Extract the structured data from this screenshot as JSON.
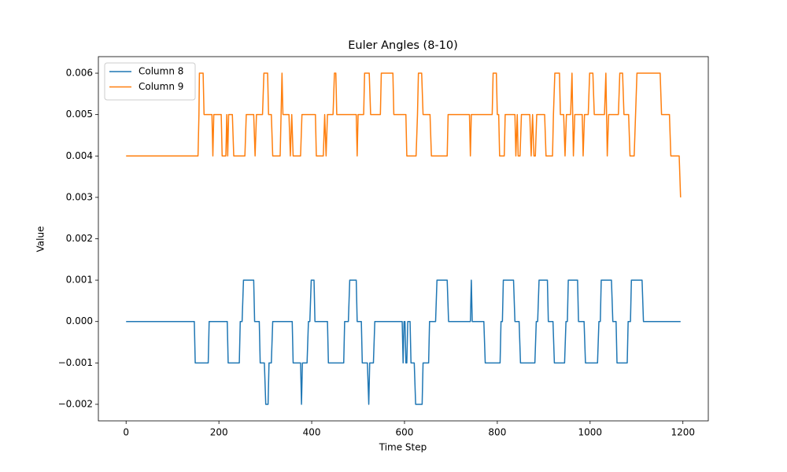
{
  "chart_data": {
    "type": "line",
    "title": "Euler Angles (8-10)",
    "x_label": "Time Step",
    "y_label": "Value",
    "xlim": [
      -59.75,
      1254.75
    ],
    "ylim": [
      -0.0024,
      0.0064
    ],
    "xticks": [
      0,
      200,
      400,
      600,
      800,
      1000,
      1200
    ],
    "yticks": [
      {
        "value": -0.002,
        "label": "−0.002"
      },
      {
        "value": -0.001,
        "label": "−0.001"
      },
      {
        "value": 0,
        "label": "0.000"
      },
      0.001,
      0.002,
      0.003,
      0.004,
      0.005,
      0.006
    ],
    "legend": "upper left",
    "series": [
      {
        "name": "Column 8",
        "color": "#1f77b4",
        "x": [
          0,
          147,
          149,
          177,
          179,
          218,
          220,
          244,
          246,
          250,
          253,
          275,
          277,
          287,
          289,
          298,
          301,
          306,
          308,
          313,
          316,
          358,
          360,
          376,
          378,
          380,
          390,
          393,
          396,
          399,
          405,
          407,
          434,
          436,
          469,
          471,
          479,
          482,
          496,
          498,
          507,
          509,
          520,
          523,
          525,
          533,
          536,
          595,
          597,
          599,
          601,
          603,
          605,
          607,
          612,
          614,
          621,
          624,
          638,
          640,
          652,
          654,
          667,
          670,
          692,
          695,
          742,
          744,
          746,
          771,
          774,
          806,
          808,
          811,
          813,
          835,
          838,
          847,
          850,
          881,
          884,
          887,
          890,
          908,
          910,
          920,
          923,
          945,
          948,
          951,
          953,
          973,
          975,
          987,
          990,
          1016,
          1019,
          1022,
          1024,
          1046,
          1049,
          1056,
          1058,
          1080,
          1082,
          1087,
          1089,
          1112,
          1115,
          1195
        ],
        "values": [
          0,
          0,
          -0.001,
          -0.001,
          0,
          0,
          -0.001,
          -0.001,
          0,
          0,
          0.001,
          0.001,
          0,
          0,
          -0.001,
          -0.001,
          -0.002,
          -0.002,
          -0.001,
          -0.001,
          0,
          0,
          -0.001,
          -0.001,
          -0.002,
          -0.001,
          -0.001,
          0,
          0,
          0.001,
          0.001,
          0,
          0,
          -0.001,
          -0.001,
          0,
          0,
          0.001,
          0.001,
          0,
          0,
          -0.001,
          -0.001,
          -0.002,
          -0.001,
          -0.001,
          0,
          0,
          -0.001,
          0,
          0,
          -0.001,
          -0.001,
          0,
          0,
          -0.001,
          -0.001,
          -0.002,
          -0.002,
          -0.001,
          -0.001,
          0,
          0,
          0.001,
          0.001,
          0,
          0,
          0.001,
          0,
          0,
          -0.001,
          -0.001,
          0,
          0,
          0.001,
          0.001,
          0,
          0,
          -0.001,
          -0.001,
          0,
          0,
          0.001,
          0.001,
          0,
          0,
          -0.001,
          -0.001,
          0,
          0,
          0.001,
          0.001,
          0,
          0,
          -0.001,
          -0.001,
          0,
          0,
          0.001,
          0.001,
          0,
          0,
          -0.001,
          -0.001,
          0,
          0,
          0.001,
          0.001,
          0,
          0
        ]
      },
      {
        "name": "Column 9",
        "color": "#ff7f0e",
        "x": [
          0,
          155,
          157,
          158,
          166,
          168,
          185,
          187,
          189,
          205,
          207,
          215,
          217,
          219,
          221,
          229,
          232,
          256,
          259,
          275,
          278,
          281,
          294,
          297,
          305,
          307,
          313,
          316,
          332,
          334,
          336,
          338,
          351,
          354,
          357,
          360,
          376,
          379,
          408,
          410,
          425,
          428,
          431,
          434,
          446,
          449,
          452,
          454,
          496,
          498,
          500,
          512,
          514,
          524,
          527,
          548,
          550,
          575,
          577,
          603,
          605,
          625,
          628,
          630,
          637,
          640,
          655,
          658,
          692,
          694,
          740,
          742,
          744,
          789,
          791,
          798,
          800,
          803,
          805,
          815,
          817,
          838,
          840,
          843,
          845,
          849,
          852,
          870,
          873,
          876,
          879,
          882,
          885,
          902,
          905,
          919,
          921,
          924,
          934,
          936,
          943,
          946,
          949,
          958,
          961,
          964,
          967,
          983,
          985,
          988,
          996,
          999,
          1006,
          1009,
          1031,
          1034,
          1037,
          1040,
          1061,
          1064,
          1070,
          1073,
          1083,
          1086,
          1095,
          1098,
          1101,
          1151,
          1154,
          1171,
          1174,
          1192,
          1195
        ],
        "values": [
          0.004,
          0.004,
          0.005,
          0.006,
          0.006,
          0.005,
          0.005,
          0.004,
          0.005,
          0.005,
          0.004,
          0.004,
          0.005,
          0.004,
          0.005,
          0.005,
          0.004,
          0.004,
          0.005,
          0.005,
          0.004,
          0.005,
          0.005,
          0.006,
          0.006,
          0.005,
          0.005,
          0.004,
          0.004,
          0.005,
          0.006,
          0.005,
          0.005,
          0.004,
          0.005,
          0.004,
          0.004,
          0.005,
          0.005,
          0.004,
          0.004,
          0.005,
          0.004,
          0.005,
          0.005,
          0.006,
          0.006,
          0.005,
          0.005,
          0.004,
          0.005,
          0.005,
          0.006,
          0.006,
          0.005,
          0.005,
          0.006,
          0.006,
          0.005,
          0.005,
          0.004,
          0.004,
          0.005,
          0.006,
          0.006,
          0.005,
          0.005,
          0.004,
          0.004,
          0.005,
          0.005,
          0.004,
          0.005,
          0.005,
          0.006,
          0.006,
          0.005,
          0.005,
          0.004,
          0.004,
          0.005,
          0.005,
          0.004,
          0.005,
          0.004,
          0.004,
          0.005,
          0.005,
          0.004,
          0.005,
          0.004,
          0.004,
          0.005,
          0.005,
          0.004,
          0.004,
          0.005,
          0.006,
          0.006,
          0.005,
          0.005,
          0.004,
          0.005,
          0.005,
          0.006,
          0.004,
          0.005,
          0.005,
          0.004,
          0.005,
          0.005,
          0.006,
          0.006,
          0.005,
          0.005,
          0.006,
          0.004,
          0.005,
          0.005,
          0.006,
          0.006,
          0.005,
          0.005,
          0.004,
          0.004,
          0.005,
          0.006,
          0.006,
          0.005,
          0.005,
          0.004,
          0.004,
          0.003
        ]
      }
    ]
  }
}
